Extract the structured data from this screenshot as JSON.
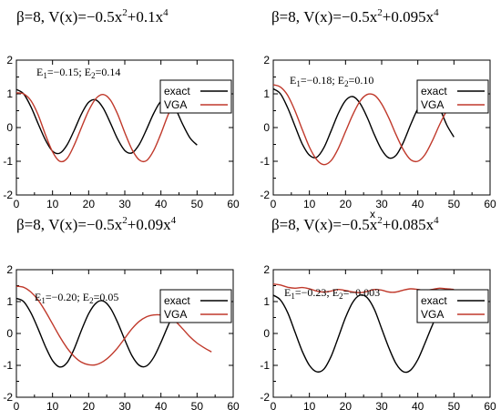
{
  "chart_data": [
    {
      "type": "line",
      "title": {
        "pre": "β=8, V(x)=−0.5x",
        "sup1": "2",
        "mid": "+0.1x",
        "sup2": "4"
      },
      "annotation": {
        "e1_label": "E",
        "e1_sub": "1",
        "e1_val": "=−0.15; ",
        "e2_label": "E",
        "e2_sub": "2",
        "e2_val": "=0.14"
      },
      "xlabel": "",
      "xlim": [
        0,
        60
      ],
      "ylim": [
        -2,
        2
      ],
      "xticks": [
        "0",
        "10",
        "20",
        "30",
        "40",
        "50",
        "60"
      ],
      "yticks": [
        "-2",
        "-1",
        "0",
        "1",
        "2"
      ],
      "legend": {
        "position": "top-right"
      },
      "series": [
        {
          "name": "exact",
          "color": "#000000",
          "x": [
            0,
            2,
            4,
            6,
            8,
            10,
            12,
            14,
            16,
            18,
            20,
            22,
            24,
            26,
            28,
            30,
            32,
            34,
            36,
            38,
            40,
            42,
            44,
            46,
            48,
            50
          ],
          "y": [
            1.13,
            1.0,
            0.62,
            0.12,
            -0.36,
            -0.7,
            -0.76,
            -0.52,
            -0.08,
            0.4,
            0.75,
            0.82,
            0.58,
            0.14,
            -0.34,
            -0.68,
            -0.75,
            -0.5,
            -0.06,
            0.42,
            0.78,
            0.82,
            0.56,
            0.1,
            -0.3,
            -0.52
          ]
        },
        {
          "name": "VGA",
          "color": "#c0392b",
          "x": [
            0,
            2,
            4,
            6,
            8,
            10,
            12,
            14,
            16,
            18,
            20,
            22,
            24,
            26,
            28,
            30,
            32,
            34,
            36,
            38,
            40,
            42,
            44,
            46,
            48
          ],
          "y": [
            1.03,
            1.0,
            0.8,
            0.38,
            -0.2,
            -0.72,
            -1.0,
            -0.92,
            -0.52,
            0.0,
            0.5,
            0.86,
            0.98,
            0.82,
            0.4,
            -0.15,
            -0.65,
            -0.96,
            -0.98,
            -0.68,
            -0.18,
            0.38,
            0.82,
            0.98,
            0.9
          ]
        }
      ]
    },
    {
      "type": "line",
      "title": {
        "pre": "β=8, V(x)=−0.5x",
        "sup1": "2",
        "mid": "+0.095x",
        "sup2": "4"
      },
      "annotation": {
        "e1_label": "E",
        "e1_sub": "1",
        "e1_val": "=−0.18; ",
        "e2_label": "E",
        "e2_sub": "2",
        "e2_val": "=0.10"
      },
      "xlabel": "x",
      "xlim": [
        0,
        60
      ],
      "ylim": [
        -2,
        2
      ],
      "xticks": [
        "0",
        "10",
        "20",
        "30",
        "40",
        "50",
        "60"
      ],
      "yticks": [
        "-2",
        "-1",
        "0",
        "1",
        "2"
      ],
      "legend": {
        "position": "top-right"
      },
      "series": [
        {
          "name": "exact",
          "color": "#000000",
          "x": [
            0,
            2,
            4,
            6,
            8,
            10,
            12,
            14,
            16,
            18,
            20,
            22,
            24,
            26,
            28,
            30,
            32,
            34,
            36,
            38,
            40,
            42,
            44,
            46,
            48,
            50
          ],
          "y": [
            1.15,
            1.0,
            0.58,
            0.05,
            -0.48,
            -0.82,
            -0.88,
            -0.6,
            -0.1,
            0.42,
            0.8,
            0.92,
            0.72,
            0.3,
            -0.22,
            -0.66,
            -0.9,
            -0.82,
            -0.44,
            0.08,
            0.56,
            0.86,
            0.88,
            0.58,
            0.08,
            -0.28
          ]
        },
        {
          "name": "VGA",
          "color": "#c0392b",
          "x": [
            0,
            2,
            4,
            6,
            8,
            10,
            12,
            14,
            16,
            18,
            20,
            22,
            24,
            26,
            28,
            30,
            32,
            34,
            36,
            38,
            40,
            42,
            44,
            46,
            48,
            50,
            52,
            54
          ],
          "y": [
            1.27,
            1.2,
            0.95,
            0.5,
            -0.05,
            -0.58,
            -0.95,
            -1.1,
            -0.98,
            -0.62,
            -0.12,
            0.38,
            0.78,
            0.98,
            0.96,
            0.7,
            0.28,
            -0.22,
            -0.66,
            -0.95,
            -1.0,
            -0.8,
            -0.4,
            0.08,
            0.5,
            0.82,
            0.88,
            0.75
          ]
        }
      ]
    },
    {
      "type": "line",
      "title": {
        "pre": "β=8, V(x)=−0.5x",
        "sup1": "2",
        "mid": "+0.09x",
        "sup2": "4"
      },
      "annotation": {
        "e1_label": "E",
        "e1_sub": "1",
        "e1_val": "=−0.20; ",
        "e2_label": "E",
        "e2_sub": "2",
        "e2_val": "=0.05"
      },
      "xlabel": "",
      "xlim": [
        0,
        60
      ],
      "ylim": [
        -2,
        2
      ],
      "xticks": [
        "0",
        "10",
        "20",
        "30",
        "40",
        "50",
        "60"
      ],
      "yticks": [
        "-2",
        "-1",
        "0",
        "1",
        "2"
      ],
      "legend": {
        "position": "top-right"
      },
      "series": [
        {
          "name": "exact",
          "color": "#000000",
          "x": [
            0,
            2,
            4,
            6,
            8,
            10,
            12,
            14,
            16,
            18,
            20,
            22,
            24,
            26,
            28,
            30,
            32,
            34,
            36,
            38,
            40,
            42,
            44,
            46,
            48
          ],
          "y": [
            1.1,
            1.0,
            0.65,
            0.15,
            -0.4,
            -0.85,
            -1.05,
            -0.92,
            -0.48,
            0.1,
            0.62,
            0.95,
            1.02,
            0.8,
            0.35,
            -0.2,
            -0.7,
            -1.0,
            -1.02,
            -0.75,
            -0.28,
            0.25,
            0.72,
            1.0,
            1.02
          ]
        },
        {
          "name": "VGA",
          "color": "#c0392b",
          "x": [
            0,
            2,
            4,
            6,
            8,
            10,
            12,
            14,
            16,
            18,
            20,
            22,
            24,
            26,
            28,
            30,
            32,
            34,
            36,
            38,
            40,
            42,
            44,
            46,
            48,
            50,
            52,
            54
          ],
          "y": [
            1.48,
            1.45,
            1.3,
            1.05,
            0.7,
            0.3,
            -0.1,
            -0.45,
            -0.72,
            -0.9,
            -0.98,
            -0.98,
            -0.88,
            -0.7,
            -0.45,
            -0.15,
            0.15,
            0.38,
            0.52,
            0.58,
            0.58,
            0.52,
            0.38,
            0.15,
            -0.1,
            -0.3,
            -0.45,
            -0.58
          ]
        }
      ]
    },
    {
      "type": "line",
      "title": {
        "pre": "β=8, V(x)=−0.5x",
        "sup1": "2",
        "mid": "+0.085x",
        "sup2": "4"
      },
      "annotation": {
        "e1_label": "E",
        "e1_sub": "1",
        "e1_val": "=−0.23; ",
        "e2_label": "E",
        "e2_sub": "2",
        "e2_val": "=−0.003"
      },
      "xlabel": "",
      "xlim": [
        0,
        60
      ],
      "ylim": [
        -2,
        2
      ],
      "xticks": [
        "0",
        "10",
        "20",
        "30",
        "40",
        "50",
        "60"
      ],
      "yticks": [
        "-2",
        "-1",
        "0",
        "1",
        "2"
      ],
      "legend": {
        "position": "top-right"
      },
      "series": [
        {
          "name": "exact",
          "color": "#000000",
          "x": [
            0,
            2,
            4,
            6,
            8,
            10,
            12,
            14,
            16,
            18,
            20,
            22,
            24,
            26,
            28,
            30,
            32,
            34,
            36,
            38,
            40,
            42,
            44,
            46,
            48,
            50
          ],
          "y": [
            1.2,
            1.05,
            0.65,
            0.05,
            -0.55,
            -1.0,
            -1.2,
            -1.12,
            -0.72,
            -0.12,
            0.5,
            0.98,
            1.2,
            1.12,
            0.75,
            0.15,
            -0.45,
            -0.95,
            -1.2,
            -1.15,
            -0.82,
            -0.3,
            0.25,
            0.72,
            0.5,
            0.5
          ]
        },
        {
          "name": "VGA",
          "color": "#c0392b",
          "x": [
            0,
            2,
            4,
            6,
            8,
            10,
            12,
            14,
            16,
            18,
            20,
            22,
            24,
            26,
            28,
            30,
            32,
            34,
            36,
            38,
            40,
            42,
            44,
            46,
            48,
            50
          ],
          "y": [
            1.55,
            1.52,
            1.45,
            1.42,
            1.44,
            1.4,
            1.33,
            1.3,
            1.33,
            1.38,
            1.35,
            1.3,
            1.28,
            1.32,
            1.38,
            1.36,
            1.3,
            1.3,
            1.36,
            1.4,
            1.38,
            1.35,
            1.38,
            1.42,
            1.4,
            1.38
          ]
        }
      ]
    }
  ]
}
